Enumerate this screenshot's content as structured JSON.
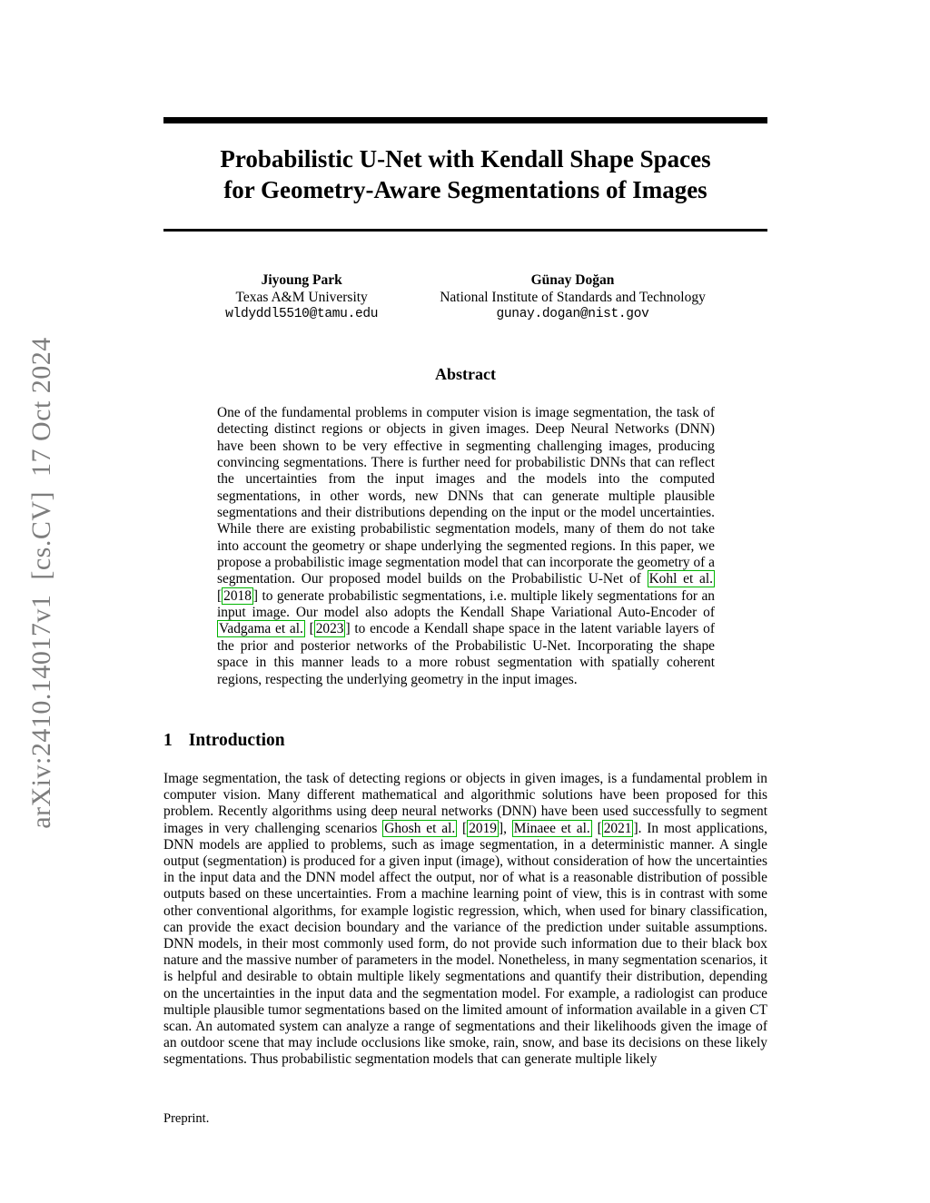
{
  "colors": {
    "citation_border": "#00b400",
    "stamp_text": "#7d7d7d",
    "rule": "#000000"
  },
  "stamp": {
    "text": "arXiv:2410.14017v1  [cs.CV]  17 Oct 2024"
  },
  "title": {
    "line1": "Probabilistic U-Net with Kendall Shape Spaces",
    "line2": "for Geometry-Aware Segmentations of Images"
  },
  "authors": [
    {
      "name": "Jiyoung Park",
      "affiliation": "Texas A&M University",
      "email": "wldyddl5510@tamu.edu"
    },
    {
      "name": "Günay Doğan",
      "affiliation": "National Institute of Standards and Technology",
      "email": "gunay.dogan@nist.gov"
    }
  ],
  "abstract": {
    "heading": "Abstract",
    "segments": [
      {
        "text": "One of the fundamental problems in computer vision is image segmentation, the task of detecting distinct regions or objects in given images. Deep Neural Networks (DNN) have been shown to be very effective in segmenting challenging images, producing convincing segmentations. There is further need for probabilistic DNNs that can reflect the uncertainties from the input images and the models into the computed segmentations, in other words, new DNNs that can generate multiple plausible segmentations and their distributions depending on the input or the model uncertainties. While there are existing probabilistic segmentation models, many of them do not take into account the geometry or shape underlying the segmented regions. In this paper, we propose a probabilistic image segmentation model that can incorporate the geometry of a segmentation. Our proposed model builds on the Probabilistic U-Net of "
      },
      {
        "cite": "Kohl et al."
      },
      {
        "text": " ["
      },
      {
        "cite": "2018"
      },
      {
        "text": "] to generate probabilistic segmentations, i.e. multiple likely segmentations for an input image. Our model also adopts the Kendall Shape Variational Auto-Encoder of "
      },
      {
        "cite": "Vadgama et al."
      },
      {
        "text": " ["
      },
      {
        "cite": "2023"
      },
      {
        "text": "] to encode a Kendall shape space in the latent variable layers of the prior and posterior networks of the Probabilistic U-Net. Incorporating the shape space in this manner leads to a more robust segmentation with spatially coherent regions, respecting the underlying geometry in the input images."
      }
    ]
  },
  "introduction": {
    "number": "1",
    "heading": "Introduction",
    "segments": [
      {
        "text": "Image segmentation, the task of detecting regions or objects in given images, is a fundamental problem in computer vision. Many different mathematical and algorithmic solutions have been proposed for this problem. Recently algorithms using deep neural networks (DNN) have been used successfully to segment images in very challenging scenarios "
      },
      {
        "cite": "Ghosh et al."
      },
      {
        "text": " ["
      },
      {
        "cite": "2019"
      },
      {
        "text": "], "
      },
      {
        "cite": "Minaee et al."
      },
      {
        "text": " ["
      },
      {
        "cite": "2021"
      },
      {
        "text": "]. In most applications, DNN models are applied to problems, such as image segmentation, in a deterministic manner. A single output (segmentation) is produced for a given input (image), without consideration of how the uncertainties in the input data and the DNN model affect the output, nor of what is a reasonable distribution of possible outputs based on these uncertainties. From a machine learning point of view, this is in contrast with some other conventional algorithms, for example logistic regression, which, when used for binary classification, can provide the exact decision boundary and the variance of the prediction under suitable assumptions. DNN models, in their most commonly used form, do not provide such information due to their black box nature and the massive number of parameters in the model. Nonetheless, in many segmentation scenarios, it is helpful and desirable to obtain multiple likely segmentations and quantify their distribution, depending on the uncertainties in the input data and the segmentation model. For example, a radiologist can produce multiple plausible tumor segmentations based on the limited amount of information available in a given CT scan. An automated system can analyze a range of segmentations and their likelihoods given the image of an outdoor scene that may include occlusions like smoke, rain, snow, and base its decisions on these likely segmentations. Thus probabilistic segmentation models that can generate multiple likely"
      }
    ]
  },
  "footer": {
    "text": "Preprint."
  }
}
